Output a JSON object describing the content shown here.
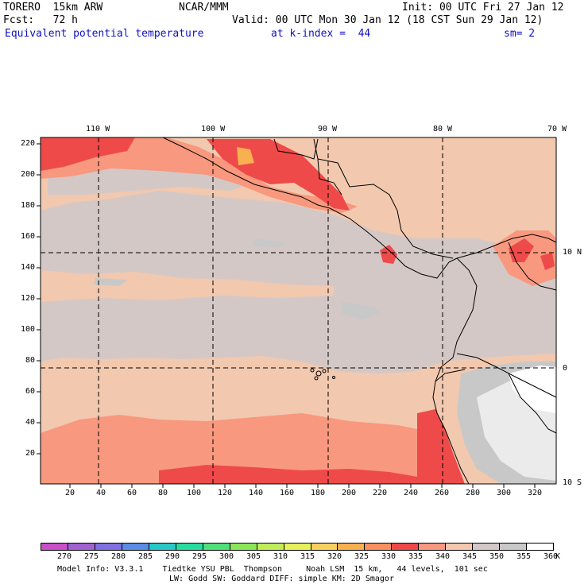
{
  "header": {
    "model": "TORERO  15km ARW",
    "org": "NCAR/MMM",
    "init": "Init: 00 UTC Fri 27 Jan 12",
    "fcst": "Fcst:   72 h",
    "valid": "Valid: 00 UTC Mon 30 Jan 12 (18 CST Sun 29 Jan 12)",
    "field": "Equivalent potential temperature",
    "level": "at k-index =  44",
    "smooth": "sm= 2"
  },
  "map": {
    "top_lon_labels": [
      "110 W",
      "100 W",
      "90 W",
      "80 W",
      "70 W"
    ],
    "right_lat_labels": [
      "10 N",
      "0",
      "10 S"
    ],
    "left_grid_labels": [
      "220",
      "200",
      "180",
      "160",
      "140",
      "120",
      "100",
      "80",
      "60",
      "40",
      "20"
    ],
    "bottom_grid_labels": [
      "20",
      "40",
      "60",
      "80",
      "100",
      "120",
      "140",
      "160",
      "180",
      "200",
      "220",
      "240",
      "260",
      "280",
      "300",
      "320"
    ]
  },
  "colorbar": {
    "unit": "K",
    "labels": [
      "270",
      "275",
      "280",
      "285",
      "290",
      "295",
      "300",
      "305",
      "310",
      "315",
      "320",
      "325",
      "330",
      "335",
      "340",
      "345",
      "350",
      "355",
      "360"
    ],
    "colors": [
      "#c850c8",
      "#a064d2",
      "#8070e0",
      "#5a8ce6",
      "#28c8c8",
      "#28dca0",
      "#50e07a",
      "#8ce65a",
      "#c0ec5a",
      "#e8f05a",
      "#f8d060",
      "#f8b050",
      "#f89060",
      "#f04848",
      "#f89880",
      "#f4c8b0",
      "#d2c8c8",
      "#c8c8c8",
      "#ffffff"
    ]
  },
  "footer": {
    "line1": "Model Info: V3.3.1    Tiedtke YSU PBL  Thompson     Noah LSM  15 km,   44 levels,  101 sec",
    "line2": "LW: Godd SW: Goddard DIFF: simple KM: 2D Smagor"
  }
}
